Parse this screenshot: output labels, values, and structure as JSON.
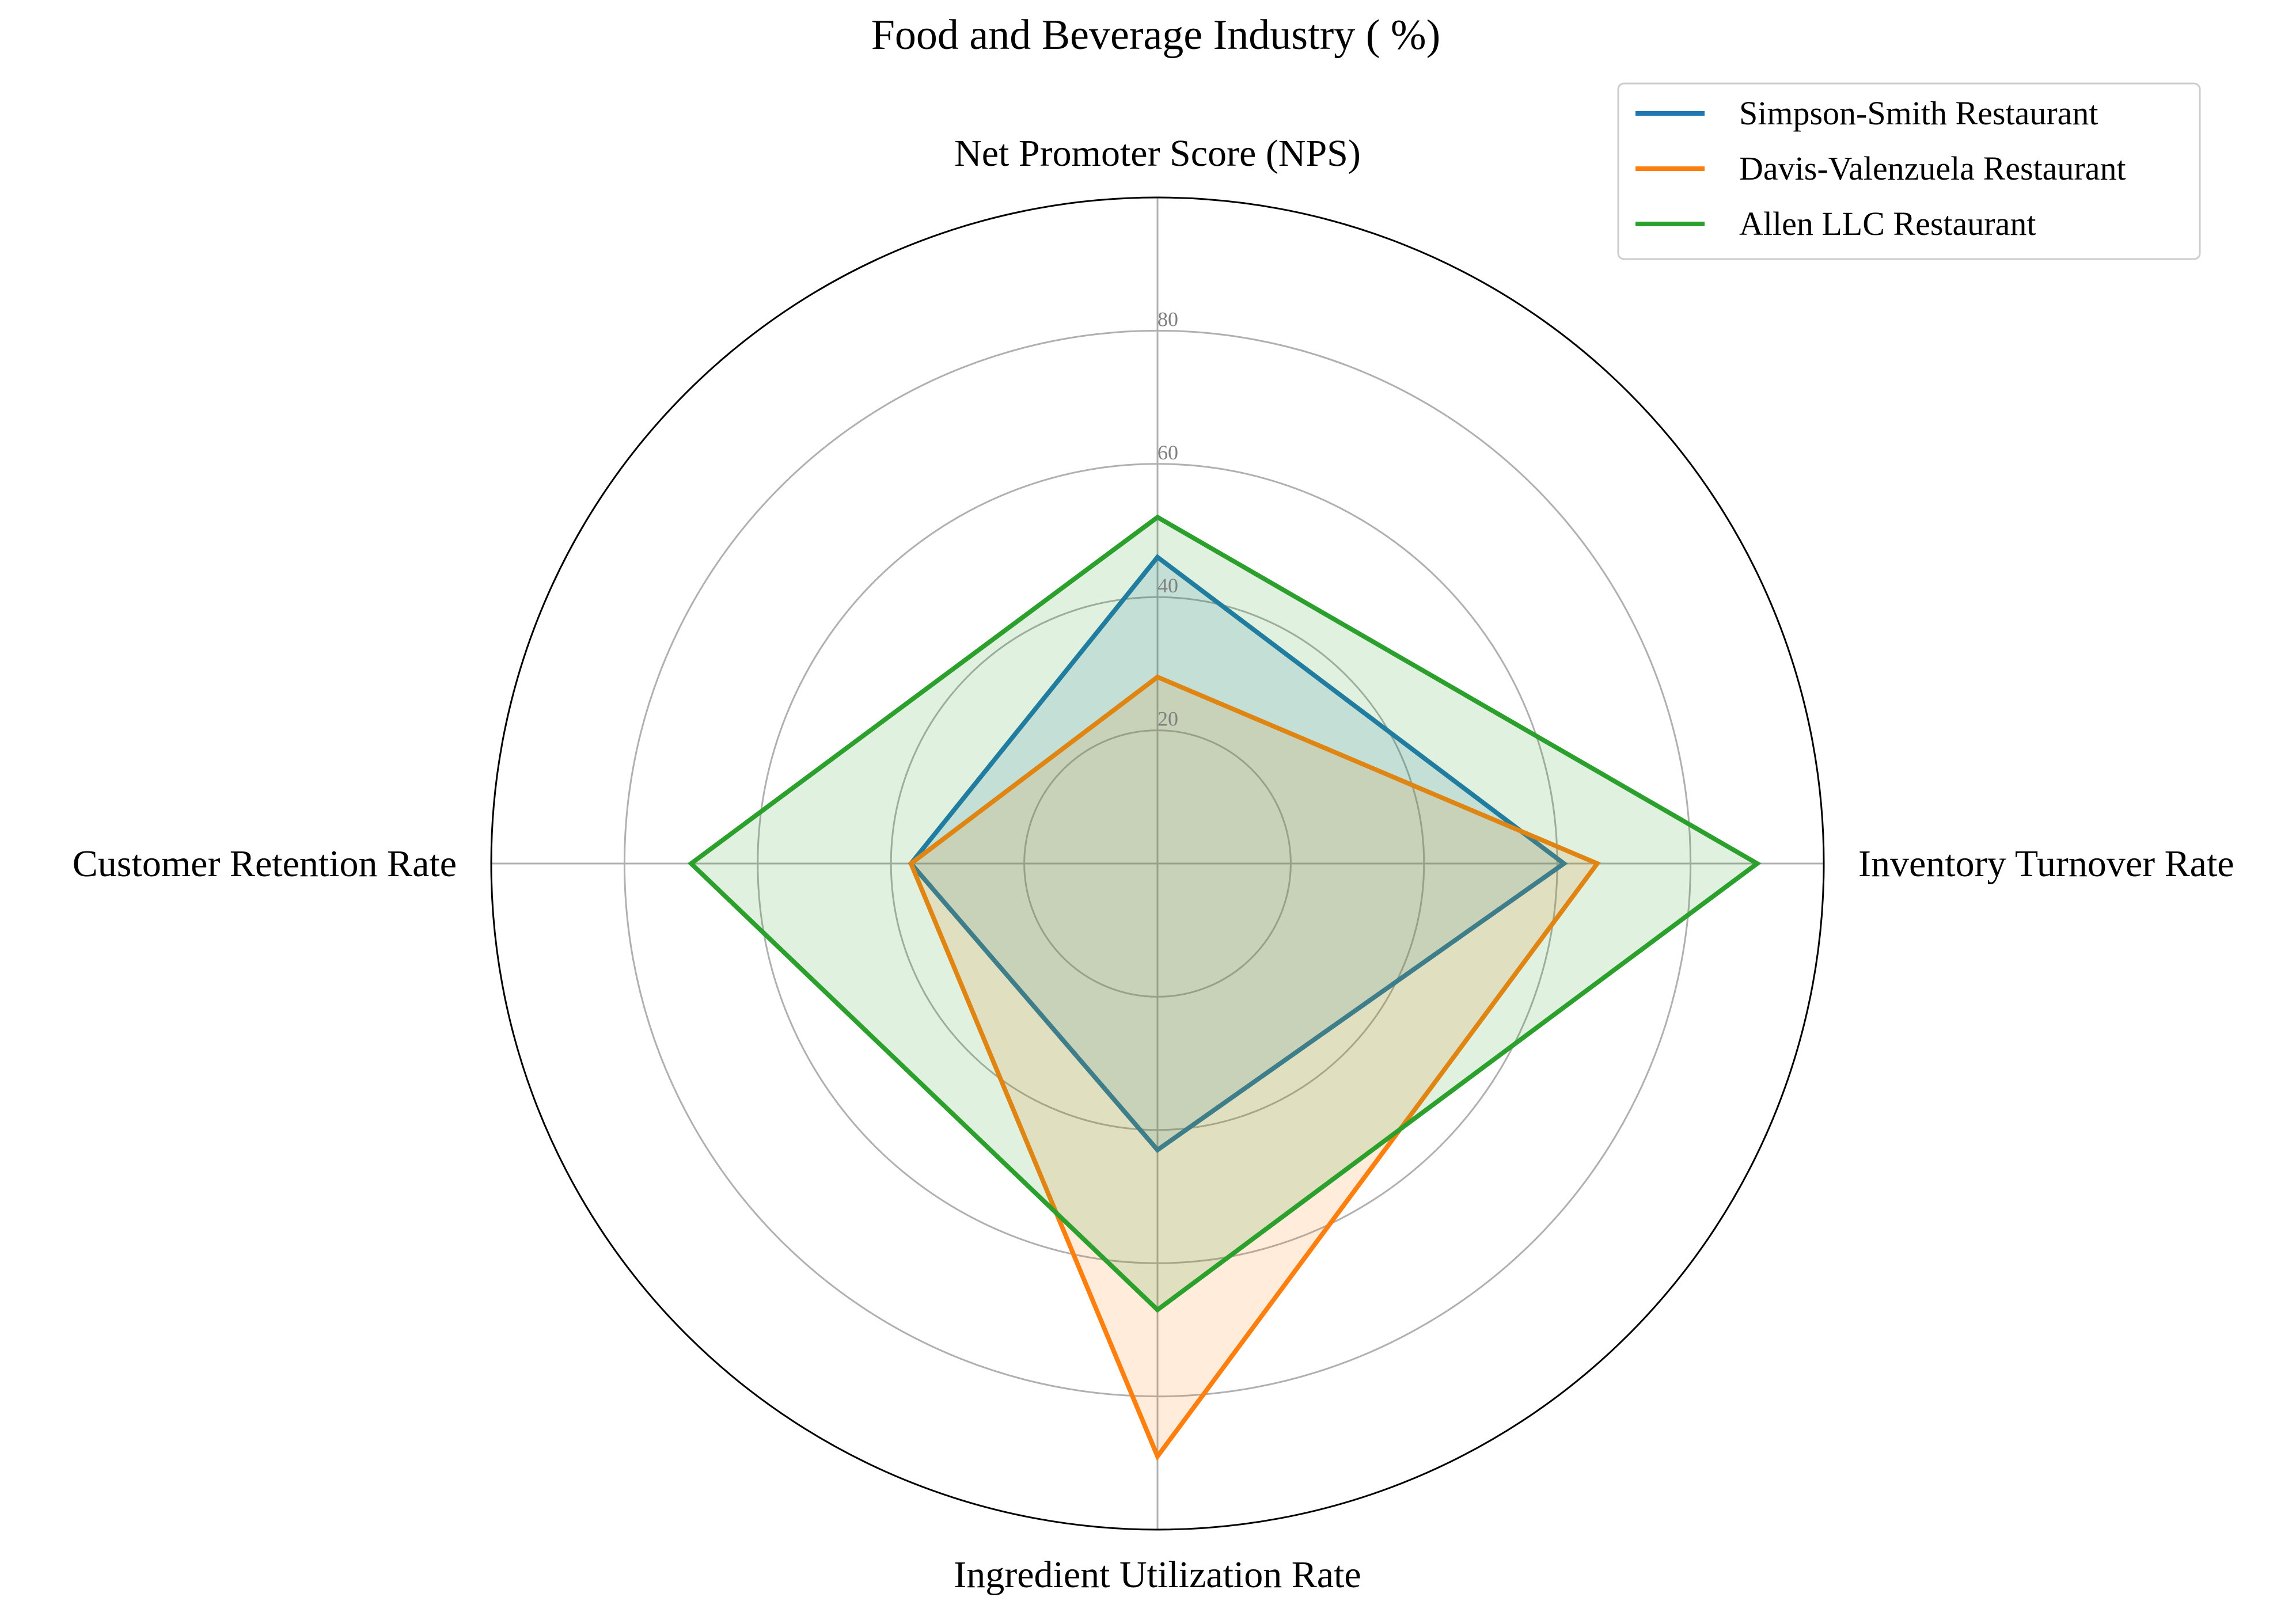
{
  "chart_data": {
    "type": "radar",
    "title": "Food and Beverage Industry ( %)",
    "axes": [
      "Net Promoter Score (NPS)",
      "Inventory Turnover Rate",
      "Ingredient Utilization Rate",
      "Customer Retention Rate"
    ],
    "rlim": [
      0,
      100
    ],
    "rticks": [
      20,
      40,
      60,
      80
    ],
    "grid": true,
    "legend_position": "top-right",
    "series": [
      {
        "name": "Simpson-Smith Restaurant",
        "values": [
          46,
          61,
          43,
          37
        ],
        "color": "#1f77b4"
      },
      {
        "name": "Davis-Valenzuela Restaurant",
        "values": [
          28,
          66,
          89,
          37
        ],
        "color": "#ff7f0e"
      },
      {
        "name": "Allen LLC Restaurant",
        "values": [
          52,
          90,
          67,
          70
        ],
        "color": "#2ca02c"
      }
    ]
  }
}
